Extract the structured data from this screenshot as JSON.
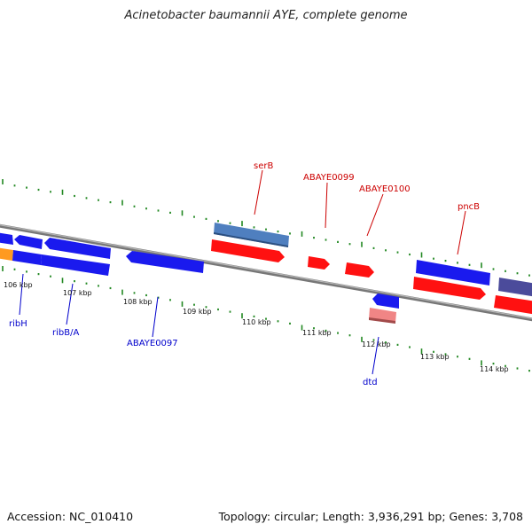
{
  "title": "Acinetobacter baumannii AYE, complete genome",
  "footer": {
    "accession": "Accession: NC_010410",
    "topology": "Topology: circular; Length: 3,936,291 bp; Genes: 3,708"
  },
  "colors": {
    "plus_strand_gene": "#4472b0",
    "minus_strand_gene": "#ff0000",
    "blue_gene": "#0000ff",
    "label_red": "#cc0000",
    "label_blue": "#0000cc",
    "ruler_tick": "#228822",
    "backbone": "#888888"
  },
  "ticks": [
    {
      "label": "106 kbp"
    },
    {
      "label": "107 kbp"
    },
    {
      "label": "108 kbp"
    },
    {
      "label": "109 kbp"
    },
    {
      "label": "110 kbp"
    },
    {
      "label": "111 kbp"
    },
    {
      "label": "112 kbp"
    },
    {
      "label": "113 kbp"
    },
    {
      "label": "114 kbp"
    }
  ],
  "gene_labels": {
    "serB": "serB",
    "ABAYE0099": "ABAYE0099",
    "ABAYE0100": "ABAYE0100",
    "pncB": "pncB",
    "ribH": "ribH",
    "ribBA": "ribB/A",
    "ABAYE0097": "ABAYE0097",
    "dtd": "dtd"
  }
}
